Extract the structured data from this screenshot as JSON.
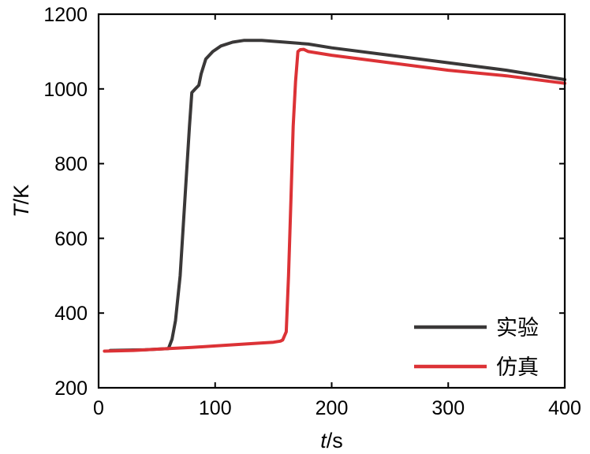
{
  "chart_data": {
    "type": "line",
    "xlabel": {
      "var": "t",
      "unit": "/s"
    },
    "ylabel": {
      "var": "T",
      "unit": "/K"
    },
    "xlim": [
      0,
      400
    ],
    "ylim": [
      200,
      1200
    ],
    "xticks": [
      "0",
      "100",
      "200",
      "300",
      "400"
    ],
    "yticks": [
      "200",
      "400",
      "600",
      "800",
      "1000",
      "1200"
    ],
    "grid": false,
    "legend_position": "bottom-right",
    "series": [
      {
        "name": "实验",
        "color": "#3a3838",
        "points": [
          [
            10,
            300
          ],
          [
            40,
            302
          ],
          [
            60,
            305
          ],
          [
            63,
            330
          ],
          [
            66,
            380
          ],
          [
            70,
            500
          ],
          [
            74,
            700
          ],
          [
            78,
            900
          ],
          [
            80,
            990
          ],
          [
            83,
            1000
          ],
          [
            86,
            1010
          ],
          [
            88,
            1040
          ],
          [
            92,
            1080
          ],
          [
            98,
            1100
          ],
          [
            105,
            1115
          ],
          [
            115,
            1125
          ],
          [
            125,
            1130
          ],
          [
            140,
            1130
          ],
          [
            160,
            1125
          ],
          [
            180,
            1120
          ],
          [
            200,
            1110
          ],
          [
            250,
            1090
          ],
          [
            300,
            1070
          ],
          [
            350,
            1050
          ],
          [
            400,
            1025
          ]
        ]
      },
      {
        "name": "仿真",
        "color": "#dc3236",
        "points": [
          [
            5,
            298
          ],
          [
            30,
            300
          ],
          [
            60,
            305
          ],
          [
            80,
            308
          ],
          [
            100,
            312
          ],
          [
            120,
            316
          ],
          [
            140,
            320
          ],
          [
            150,
            322
          ],
          [
            156,
            325
          ],
          [
            158,
            328
          ],
          [
            161,
            350
          ],
          [
            163,
            500
          ],
          [
            165,
            700
          ],
          [
            167,
            900
          ],
          [
            169,
            1020
          ],
          [
            170,
            1060
          ],
          [
            171,
            1100
          ],
          [
            173,
            1105
          ],
          [
            176,
            1106
          ],
          [
            180,
            1100
          ],
          [
            200,
            1090
          ],
          [
            250,
            1070
          ],
          [
            300,
            1050
          ],
          [
            350,
            1035
          ],
          [
            400,
            1015
          ]
        ]
      }
    ]
  }
}
